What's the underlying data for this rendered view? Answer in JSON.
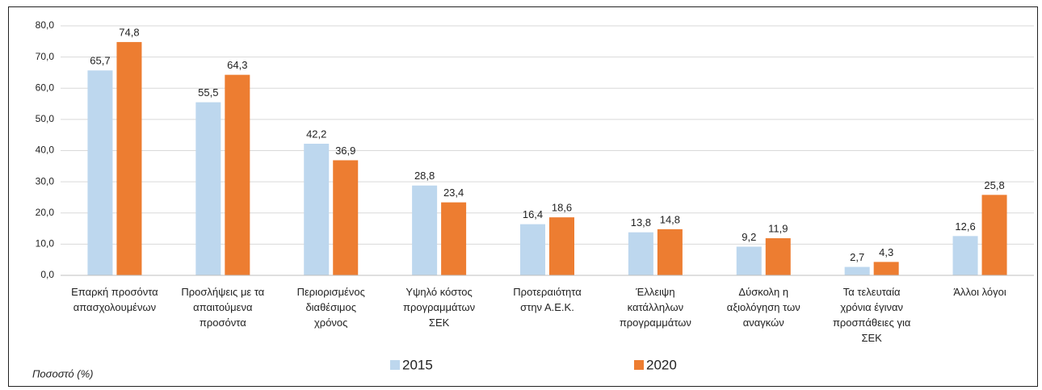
{
  "chart_data": {
    "type": "bar",
    "categories": [
      "Επαρκή προσόντα\nαπασχολουμένων",
      "Προσλήψεις με τα\nαπαιτούμενα\nπροσόντα",
      "Περιορισμένος\nδιαθέσιμος\nχρόνος",
      "Υψηλό κόστος\nπρογραμμάτων\nΣΕΚ",
      "Προτεραιότητα\nστην Α.Ε.Κ.",
      "Έλλειψη\nκατάλληλων\nπρογραμμάτων",
      "Δύσκολη η\nαξιολόγηση των\nαναγκών",
      "Τα τελευταία\nχρόνια έγιναν\nπροσπάθειες για\nΣΕΚ",
      "Άλλοι λόγοι"
    ],
    "series": [
      {
        "name": "2015",
        "color": "#bdd7ee",
        "values": [
          65.7,
          55.5,
          42.2,
          28.8,
          16.4,
          13.8,
          9.2,
          2.7,
          12.6
        ],
        "value_labels": [
          "65,7",
          "55,5",
          "42,2",
          "28,8",
          "16,4",
          "13,8",
          "9,2",
          "2,7",
          "12,6"
        ]
      },
      {
        "name": "2020",
        "color": "#ed7d31",
        "values": [
          74.8,
          64.3,
          36.9,
          23.4,
          18.6,
          14.8,
          11.9,
          4.3,
          25.8
        ],
        "value_labels": [
          "74,8",
          "64,3",
          "36,9",
          "23,4",
          "18,6",
          "14,8",
          "11,9",
          "4,3",
          "25,8"
        ]
      }
    ],
    "ylim": [
      0,
      80
    ],
    "yticks": [
      {
        "value": 0,
        "label": "0,0"
      },
      {
        "value": 10,
        "label": "10,0"
      },
      {
        "value": 20,
        "label": "20,0"
      },
      {
        "value": 30,
        "label": "30,0"
      },
      {
        "value": 40,
        "label": "40,0"
      },
      {
        "value": 50,
        "label": "50,0"
      },
      {
        "value": 60,
        "label": "60,0"
      },
      {
        "value": 70,
        "label": "70,0"
      },
      {
        "value": 80,
        "label": "80,0"
      }
    ],
    "grid": true,
    "legend": "bottom",
    "ylabel": "Ποσοστό (%)"
  }
}
